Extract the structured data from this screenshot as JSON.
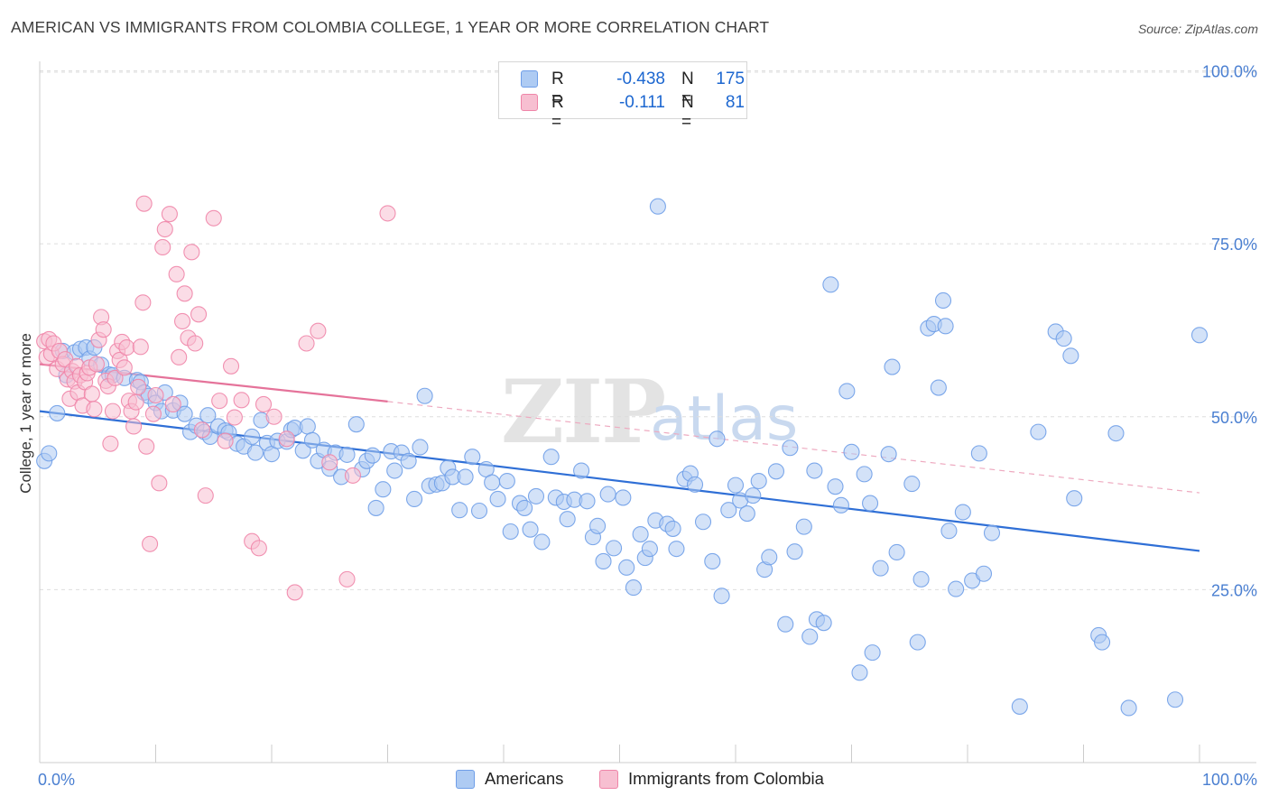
{
  "title": "AMERICAN VS IMMIGRANTS FROM COLOMBIA COLLEGE, 1 YEAR OR MORE CORRELATION CHART",
  "source": "Source: ZipAtlas.com",
  "watermark": {
    "zip": "ZIP",
    "atlas": "atlas"
  },
  "legend": {
    "r_label": "R =",
    "n_label": "N =",
    "series": [
      {
        "name": "Americans",
        "r": "-0.438",
        "n": "175",
        "color": "#6f9ee8",
        "fill": "#aecbf3"
      },
      {
        "name": "Immigrants from Colombia",
        "r": "-0.111",
        "n": "81",
        "color": "#ef85a8",
        "fill": "#f7bfd1"
      }
    ]
  },
  "chart_data": {
    "type": "scatter",
    "title": "AMERICAN VS IMMIGRANTS FROM COLOMBIA COLLEGE, 1 YEAR OR MORE CORRELATION CHART",
    "xlabel": "",
    "ylabel": "College, 1 year or more",
    "xlim": [
      0,
      100
    ],
    "ylim": [
      0,
      105
    ],
    "x_tick_labels": [
      "0.0%",
      "100.0%"
    ],
    "y_ticks": [
      25,
      50,
      75,
      100
    ],
    "y_tick_labels": [
      "25.0%",
      "50.0%",
      "75.0%",
      "100.0%"
    ],
    "grid": true,
    "series": [
      {
        "name": "Americans",
        "color": "#6f9ee8",
        "fill": "#aecbf3",
        "trend": {
          "x": [
            0,
            100
          ],
          "y": [
            50.8,
            30.6
          ],
          "style": "solid",
          "color": "#2f6fd6"
        },
        "points": [
          [
            0.4,
            43.6
          ],
          [
            0.8,
            44.7
          ],
          [
            1.5,
            50.5
          ],
          [
            2.0,
            59.5
          ],
          [
            2.3,
            56.0
          ],
          [
            3.0,
            59.3
          ],
          [
            3.5,
            59.8
          ],
          [
            4.0,
            60.0
          ],
          [
            4.3,
            58.4
          ],
          [
            4.7,
            60.0
          ],
          [
            5.3,
            57.5
          ],
          [
            6.0,
            56.1
          ],
          [
            6.3,
            56.0
          ],
          [
            7.3,
            55.6
          ],
          [
            8.4,
            55.3
          ],
          [
            8.7,
            55.0
          ],
          [
            9.0,
            53.5
          ],
          [
            9.4,
            53.0
          ],
          [
            10.0,
            52.0
          ],
          [
            10.5,
            50.8
          ],
          [
            10.8,
            53.5
          ],
          [
            11.5,
            50.9
          ],
          [
            12.1,
            52.0
          ],
          [
            12.5,
            50.4
          ],
          [
            13.0,
            47.8
          ],
          [
            13.5,
            48.7
          ],
          [
            14.2,
            47.8
          ],
          [
            14.5,
            50.2
          ],
          [
            14.7,
            47.1
          ],
          [
            15.4,
            48.6
          ],
          [
            16.0,
            48.0
          ],
          [
            16.3,
            47.7
          ],
          [
            17.0,
            46.1
          ],
          [
            17.6,
            45.7
          ],
          [
            18.3,
            47.1
          ],
          [
            18.6,
            44.8
          ],
          [
            19.1,
            49.5
          ],
          [
            19.6,
            46.2
          ],
          [
            20.0,
            44.6
          ],
          [
            20.5,
            46.5
          ],
          [
            21.3,
            46.4
          ],
          [
            21.7,
            48.1
          ],
          [
            22.0,
            48.4
          ],
          [
            22.7,
            45.1
          ],
          [
            23.1,
            48.6
          ],
          [
            23.5,
            46.6
          ],
          [
            24.0,
            43.6
          ],
          [
            24.5,
            45.2
          ],
          [
            25.0,
            42.5
          ],
          [
            25.5,
            44.8
          ],
          [
            26.0,
            41.3
          ],
          [
            26.5,
            44.5
          ],
          [
            27.3,
            48.9
          ],
          [
            27.8,
            42.4
          ],
          [
            28.2,
            43.6
          ],
          [
            28.7,
            44.4
          ],
          [
            29.0,
            36.8
          ],
          [
            29.6,
            39.5
          ],
          [
            30.3,
            45.0
          ],
          [
            30.6,
            42.2
          ],
          [
            31.2,
            44.8
          ],
          [
            31.8,
            43.6
          ],
          [
            32.3,
            38.1
          ],
          [
            32.8,
            45.6
          ],
          [
            33.2,
            53.0
          ],
          [
            33.6,
            40.0
          ],
          [
            34.2,
            40.2
          ],
          [
            34.7,
            40.4
          ],
          [
            35.2,
            42.6
          ],
          [
            35.6,
            41.3
          ],
          [
            36.2,
            36.5
          ],
          [
            36.7,
            41.3
          ],
          [
            37.3,
            44.2
          ],
          [
            37.9,
            36.4
          ],
          [
            38.5,
            42.4
          ],
          [
            39.0,
            40.5
          ],
          [
            39.5,
            38.1
          ],
          [
            40.3,
            40.7
          ],
          [
            40.6,
            33.4
          ],
          [
            41.4,
            37.5
          ],
          [
            41.8,
            36.8
          ],
          [
            42.3,
            33.7
          ],
          [
            42.8,
            38.5
          ],
          [
            43.3,
            31.9
          ],
          [
            44.1,
            44.2
          ],
          [
            44.5,
            38.3
          ],
          [
            45.2,
            37.7
          ],
          [
            45.5,
            35.2
          ],
          [
            46.1,
            38.0
          ],
          [
            46.7,
            42.2
          ],
          [
            47.2,
            37.8
          ],
          [
            47.7,
            32.6
          ],
          [
            48.1,
            34.2
          ],
          [
            48.6,
            29.1
          ],
          [
            49.0,
            38.8
          ],
          [
            49.5,
            31.0
          ],
          [
            50.3,
            38.3
          ],
          [
            50.6,
            28.2
          ],
          [
            51.2,
            25.3
          ],
          [
            51.8,
            33.0
          ],
          [
            52.2,
            29.6
          ],
          [
            52.6,
            30.9
          ],
          [
            53.1,
            35.0
          ],
          [
            53.3,
            80.4
          ],
          [
            54.1,
            34.5
          ],
          [
            54.6,
            33.8
          ],
          [
            54.9,
            30.9
          ],
          [
            55.6,
            41.0
          ],
          [
            56.1,
            41.8
          ],
          [
            56.5,
            40.2
          ],
          [
            57.2,
            34.8
          ],
          [
            58.0,
            29.1
          ],
          [
            58.4,
            46.8
          ],
          [
            58.8,
            24.1
          ],
          [
            59.4,
            36.5
          ],
          [
            60.0,
            40.1
          ],
          [
            60.4,
            37.9
          ],
          [
            61.0,
            36.0
          ],
          [
            61.5,
            38.6
          ],
          [
            62.0,
            40.7
          ],
          [
            62.5,
            27.9
          ],
          [
            62.9,
            29.7
          ],
          [
            63.5,
            42.1
          ],
          [
            64.3,
            20.0
          ],
          [
            64.7,
            45.5
          ],
          [
            65.1,
            30.5
          ],
          [
            65.9,
            34.1
          ],
          [
            66.4,
            18.2
          ],
          [
            66.8,
            42.2
          ],
          [
            67.0,
            20.7
          ],
          [
            67.6,
            20.2
          ],
          [
            68.2,
            69.1
          ],
          [
            68.6,
            39.9
          ],
          [
            69.1,
            37.2
          ],
          [
            69.6,
            53.7
          ],
          [
            70.0,
            44.9
          ],
          [
            70.7,
            13.0
          ],
          [
            71.1,
            41.7
          ],
          [
            71.6,
            37.5
          ],
          [
            71.8,
            15.9
          ],
          [
            72.5,
            28.1
          ],
          [
            73.2,
            44.6
          ],
          [
            73.5,
            57.2
          ],
          [
            73.9,
            30.4
          ],
          [
            75.2,
            40.3
          ],
          [
            75.7,
            17.4
          ],
          [
            76.0,
            26.5
          ],
          [
            76.6,
            62.8
          ],
          [
            77.1,
            63.4
          ],
          [
            77.5,
            54.2
          ],
          [
            77.9,
            66.8
          ],
          [
            78.1,
            63.1
          ],
          [
            78.4,
            33.5
          ],
          [
            79.0,
            25.1
          ],
          [
            79.6,
            36.2
          ],
          [
            80.4,
            26.3
          ],
          [
            81.0,
            44.7
          ],
          [
            81.4,
            27.3
          ],
          [
            82.1,
            33.2
          ],
          [
            84.5,
            8.1
          ],
          [
            86.1,
            47.8
          ],
          [
            87.6,
            62.3
          ],
          [
            88.3,
            61.3
          ],
          [
            88.9,
            58.8
          ],
          [
            89.2,
            38.2
          ],
          [
            91.3,
            18.4
          ],
          [
            91.6,
            17.4
          ],
          [
            92.8,
            47.6
          ],
          [
            93.9,
            7.9
          ],
          [
            97.9,
            9.1
          ],
          [
            100.0,
            61.8
          ]
        ]
      },
      {
        "name": "Immigrants from Colombia",
        "color": "#ef85a8",
        "fill": "#f7bfd1",
        "trend_solid": {
          "x": [
            0,
            30
          ],
          "y": [
            57.6,
            52.2
          ],
          "style": "solid",
          "color": "#e5739a"
        },
        "trend_dashed": {
          "x": [
            30,
            100
          ],
          "y": [
            52.2,
            39.0
          ],
          "style": "dashed",
          "color": "#eeaac0"
        },
        "points": [
          [
            0.4,
            60.9
          ],
          [
            0.6,
            58.6
          ],
          [
            0.8,
            61.2
          ],
          [
            1.0,
            59.1
          ],
          [
            1.2,
            60.6
          ],
          [
            1.5,
            56.9
          ],
          [
            1.7,
            59.5
          ],
          [
            2.0,
            57.6
          ],
          [
            2.2,
            58.3
          ],
          [
            2.4,
            55.4
          ],
          [
            2.6,
            52.6
          ],
          [
            2.8,
            56.6
          ],
          [
            3.0,
            55.1
          ],
          [
            3.2,
            57.3
          ],
          [
            3.3,
            53.5
          ],
          [
            3.5,
            56.0
          ],
          [
            3.7,
            51.6
          ],
          [
            3.9,
            55.0
          ],
          [
            4.1,
            56.3
          ],
          [
            4.3,
            57.1
          ],
          [
            4.5,
            53.3
          ],
          [
            4.7,
            51.1
          ],
          [
            4.9,
            57.6
          ],
          [
            5.1,
            61.1
          ],
          [
            5.3,
            64.4
          ],
          [
            5.5,
            62.6
          ],
          [
            5.7,
            55.2
          ],
          [
            5.9,
            54.4
          ],
          [
            6.1,
            46.1
          ],
          [
            6.3,
            50.8
          ],
          [
            6.5,
            55.6
          ],
          [
            6.7,
            59.5
          ],
          [
            6.9,
            58.2
          ],
          [
            7.1,
            60.8
          ],
          [
            7.3,
            57.1
          ],
          [
            7.5,
            60.0
          ],
          [
            7.7,
            52.3
          ],
          [
            7.9,
            50.8
          ],
          [
            8.1,
            48.6
          ],
          [
            8.3,
            52.1
          ],
          [
            8.5,
            54.3
          ],
          [
            8.7,
            60.1
          ],
          [
            8.9,
            66.5
          ],
          [
            9.0,
            80.8
          ],
          [
            9.2,
            45.7
          ],
          [
            9.5,
            31.6
          ],
          [
            9.8,
            50.4
          ],
          [
            10.0,
            53.1
          ],
          [
            10.3,
            40.4
          ],
          [
            10.6,
            74.5
          ],
          [
            10.8,
            77.1
          ],
          [
            11.2,
            79.3
          ],
          [
            11.5,
            51.8
          ],
          [
            11.8,
            70.6
          ],
          [
            12.0,
            58.6
          ],
          [
            12.3,
            63.8
          ],
          [
            12.5,
            67.8
          ],
          [
            12.8,
            61.4
          ],
          [
            13.1,
            73.8
          ],
          [
            13.4,
            60.6
          ],
          [
            13.7,
            64.8
          ],
          [
            14.0,
            48.1
          ],
          [
            14.3,
            38.6
          ],
          [
            15.0,
            78.7
          ],
          [
            15.5,
            52.3
          ],
          [
            16.0,
            46.5
          ],
          [
            16.5,
            57.3
          ],
          [
            16.8,
            49.9
          ],
          [
            17.4,
            52.4
          ],
          [
            18.3,
            32.0
          ],
          [
            18.9,
            31.0
          ],
          [
            19.3,
            51.8
          ],
          [
            20.2,
            50.0
          ],
          [
            21.3,
            46.8
          ],
          [
            22.0,
            24.6
          ],
          [
            23.0,
            60.6
          ],
          [
            24.0,
            62.4
          ],
          [
            25.0,
            43.4
          ],
          [
            26.5,
            26.5
          ],
          [
            27.0,
            41.5
          ],
          [
            30.0,
            79.4
          ]
        ]
      }
    ]
  }
}
